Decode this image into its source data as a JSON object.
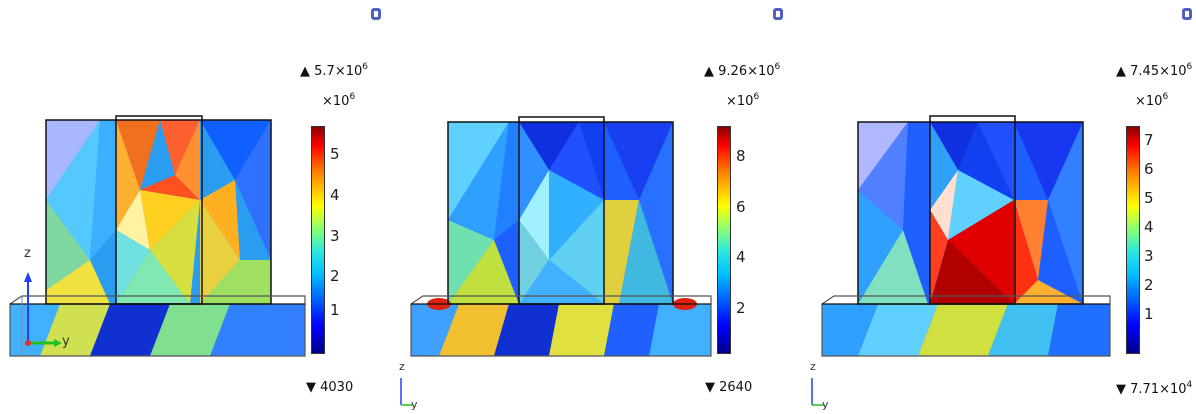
{
  "panels": [
    {
      "id": "left",
      "max_label": "5.7×10",
      "max_exp": "6",
      "scale_label": "×10",
      "scale_exp": "6",
      "min_label": "4030",
      "min_exp": "",
      "ticks": [
        "5",
        "4",
        "3",
        "2",
        "1"
      ],
      "axis": {
        "vertical": "z",
        "horizontal": "y"
      }
    },
    {
      "id": "middle",
      "max_label": "9.26×10",
      "max_exp": "6",
      "scale_label": "×10",
      "scale_exp": "6",
      "min_label": "2640",
      "min_exp": "",
      "ticks": [
        "8",
        "6",
        "4",
        "2"
      ],
      "axis": {
        "vertical": "z",
        "horizontal": "y"
      }
    },
    {
      "id": "right",
      "max_label": "7.45×10",
      "max_exp": "6",
      "scale_label": "×10",
      "scale_exp": "6",
      "min_label": "7.71×10",
      "min_exp": "4",
      "ticks": [
        "7",
        "6",
        "5",
        "4",
        "3",
        "2",
        "1"
      ],
      "axis": {
        "vertical": "z",
        "horizontal": "y"
      }
    }
  ],
  "colors": {
    "colormap": [
      "#00008b",
      "#0000ff",
      "#00bfff",
      "#00ffff",
      "#7fff7f",
      "#ffff00",
      "#ff7f00",
      "#ff0000",
      "#8b0000"
    ]
  }
}
